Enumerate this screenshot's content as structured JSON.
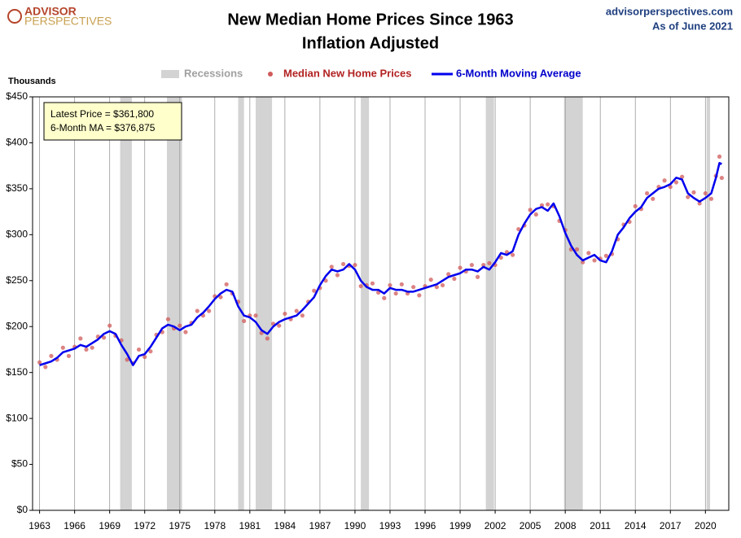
{
  "chart_data": {
    "type": "scatter_line",
    "brand": [
      "ADVISOR",
      "PERSPECTIVES"
    ],
    "site": "advisorperspectives.com",
    "as_of": "As of June 2021",
    "title": [
      "New Median Home Prices Since 1963",
      "Inflation Adjusted"
    ],
    "ylabel": "Thousands",
    "annotation": [
      "Latest Price = $361,800",
      "6-Month MA = $376,875"
    ],
    "recession_label": "Recessions",
    "recession_color": "#d3d3d3",
    "recessions": [
      [
        1969.9,
        1970.9
      ],
      [
        1973.9,
        1975.2
      ],
      [
        1980.0,
        1980.5
      ],
      [
        1981.5,
        1982.9
      ],
      [
        1990.5,
        1991.2
      ],
      [
        2001.2,
        2001.9
      ],
      [
        2007.9,
        2009.5
      ],
      [
        2020.1,
        2020.4
      ]
    ],
    "x": [
      1963,
      1963.5,
      1964,
      1964.5,
      1965,
      1965.5,
      1966,
      1966.5,
      1967,
      1967.5,
      1968,
      1968.5,
      1969,
      1969.5,
      1970,
      1970.5,
      1971,
      1971.5,
      1972,
      1972.5,
      1973,
      1973.5,
      1974,
      1974.5,
      1975,
      1975.5,
      1976,
      1976.5,
      1977,
      1977.5,
      1978,
      1978.5,
      1979,
      1979.5,
      1980,
      1980.5,
      1981,
      1981.5,
      1982,
      1982.5,
      1983,
      1983.5,
      1984,
      1984.5,
      1985,
      1985.5,
      1986,
      1986.5,
      1987,
      1987.5,
      1988,
      1988.5,
      1989,
      1989.5,
      1990,
      1990.5,
      1991,
      1991.5,
      1992,
      1992.5,
      1993,
      1993.5,
      1994,
      1994.5,
      1995,
      1995.5,
      1996,
      1996.5,
      1997,
      1997.5,
      1998,
      1998.5,
      1999,
      1999.5,
      2000,
      2000.5,
      2001,
      2001.5,
      2002,
      2002.5,
      2003,
      2003.5,
      2004,
      2004.5,
      2005,
      2005.5,
      2006,
      2006.5,
      2007,
      2007.5,
      2008,
      2008.5,
      2009,
      2009.5,
      2010,
      2010.5,
      2011,
      2011.5,
      2012,
      2012.5,
      2013,
      2013.5,
      2014,
      2014.5,
      2015,
      2015.5,
      2016,
      2016.5,
      2017,
      2017.5,
      2018,
      2018.5,
      2019,
      2019.5,
      2020,
      2020.5,
      2020.9,
      2021.2,
      2021.4
    ],
    "series": [
      {
        "name": "Median New Home Prices",
        "color": "#d05a5a",
        "kind": "scatter",
        "values": [
          161,
          156,
          168,
          164,
          177,
          168,
          178,
          187,
          175,
          177,
          189,
          188,
          201,
          190,
          185,
          164,
          160,
          175,
          167,
          173,
          191,
          194,
          208,
          198,
          201,
          194,
          204,
          217,
          212,
          217,
          233,
          232,
          246,
          236,
          227,
          206,
          212,
          212,
          193,
          187,
          203,
          201,
          214,
          208,
          217,
          212,
          227,
          239,
          242,
          250,
          265,
          256,
          268,
          266,
          267,
          244,
          245,
          247,
          237,
          231,
          245,
          236,
          246,
          236,
          243,
          234,
          244,
          251,
          243,
          245,
          257,
          252,
          264,
          260,
          267,
          254,
          267,
          269,
          267,
          275,
          281,
          278,
          306,
          310,
          327,
          322,
          332,
          333,
          331,
          315,
          305,
          284,
          284,
          270,
          280,
          272,
          274,
          277,
          279,
          295,
          311,
          314,
          331,
          328,
          345,
          339,
          352,
          359,
          352,
          357,
          363,
          341,
          346,
          334,
          345,
          339,
          364,
          385,
          361.8
        ]
      },
      {
        "name": "6-Month Moving Average",
        "color": "#0000ee",
        "kind": "line",
        "values": [
          158,
          160,
          162,
          166,
          172,
          174,
          176,
          180,
          178,
          182,
          186,
          192,
          195,
          192,
          180,
          170,
          158,
          168,
          170,
          178,
          188,
          198,
          202,
          200,
          196,
          200,
          202,
          210,
          215,
          222,
          230,
          236,
          240,
          238,
          222,
          212,
          210,
          205,
          196,
          192,
          200,
          205,
          208,
          210,
          212,
          218,
          225,
          232,
          245,
          255,
          262,
          260,
          262,
          268,
          262,
          250,
          243,
          240,
          240,
          236,
          242,
          240,
          240,
          238,
          238,
          240,
          242,
          244,
          246,
          250,
          254,
          256,
          258,
          262,
          262,
          260,
          265,
          262,
          270,
          280,
          278,
          282,
          300,
          312,
          322,
          328,
          330,
          326,
          334,
          320,
          302,
          288,
          278,
          272,
          275,
          278,
          272,
          270,
          282,
          300,
          308,
          318,
          325,
          330,
          340,
          345,
          350,
          352,
          355,
          362,
          360,
          345,
          340,
          336,
          340,
          345,
          362,
          378,
          377
        ]
      }
    ],
    "xlim": [
      1962.4,
      2022.0
    ],
    "xticks": [
      1963,
      1966,
      1969,
      1972,
      1975,
      1978,
      1981,
      1984,
      1987,
      1990,
      1993,
      1996,
      1999,
      2002,
      2005,
      2008,
      2011,
      2014,
      2017,
      2020
    ],
    "ylim": [
      0,
      450
    ],
    "yticks": [
      {
        "value": 0,
        "label": "$0"
      },
      {
        "value": 50,
        "label": "$50"
      },
      {
        "value": 100,
        "label": "$100"
      },
      {
        "value": 150,
        "label": "$150"
      },
      {
        "value": 200,
        "label": "$200"
      },
      {
        "value": 250,
        "label": "$250"
      },
      {
        "value": 300,
        "label": "$300"
      },
      {
        "value": 350,
        "label": "$350"
      },
      {
        "value": 400,
        "label": "$400"
      },
      {
        "value": 450,
        "label": "$450"
      }
    ],
    "grid": "x"
  }
}
